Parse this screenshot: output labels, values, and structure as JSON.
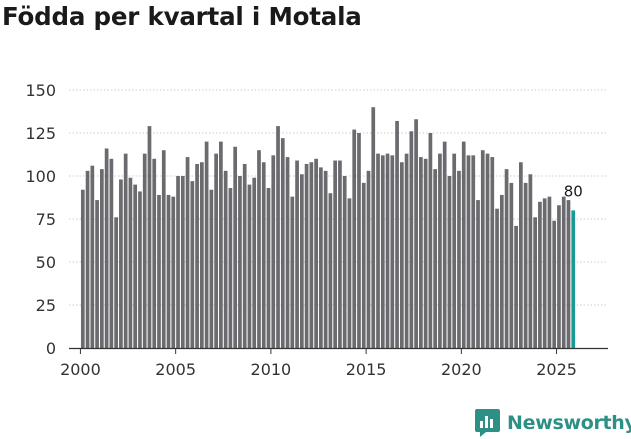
{
  "title": "Födda per kvartal i Motala",
  "brand": {
    "name": "Newsworthy",
    "color": "#2e8f85",
    "icon": "bar-chart-logo"
  },
  "colors": {
    "bar": "#6b6a6f",
    "highlight": "#1a9a95",
    "axis": "#333333",
    "grid": "#cccccc",
    "text": "#333333"
  },
  "chart_data": {
    "type": "bar",
    "title": "Födda per kvartal i Motala",
    "xlabel": "",
    "ylabel": "",
    "ylim": [
      0,
      150
    ],
    "yticks": [
      0,
      25,
      50,
      75,
      100,
      125,
      150
    ],
    "xlim": [
      1999.4,
      2027.7
    ],
    "xticks": [
      2000,
      2005,
      2010,
      2015,
      2020,
      2025
    ],
    "grid": true,
    "start": "2000-Q1",
    "values": [
      92,
      103,
      106,
      86,
      104,
      116,
      110,
      76,
      98,
      113,
      99,
      95,
      91,
      113,
      129,
      110,
      89,
      115,
      89,
      88,
      100,
      100,
      111,
      97,
      107,
      108,
      120,
      92,
      113,
      120,
      103,
      93,
      117,
      100,
      107,
      95,
      99,
      115,
      108,
      93,
      112,
      129,
      122,
      111,
      88,
      109,
      101,
      107,
      108,
      110,
      105,
      103,
      90,
      109,
      109,
      100,
      87,
      127,
      125,
      96,
      103,
      140,
      113,
      112,
      113,
      112,
      132,
      108,
      113,
      126,
      133,
      111,
      110,
      125,
      104,
      113,
      120,
      100,
      113,
      103,
      120,
      112,
      112,
      86,
      115,
      113,
      111,
      81,
      89,
      104,
      96,
      71,
      108,
      96,
      101,
      76,
      85,
      87,
      88,
      74,
      83,
      88,
      86,
      80
    ],
    "highlight_index": 103,
    "data_label": "80"
  }
}
